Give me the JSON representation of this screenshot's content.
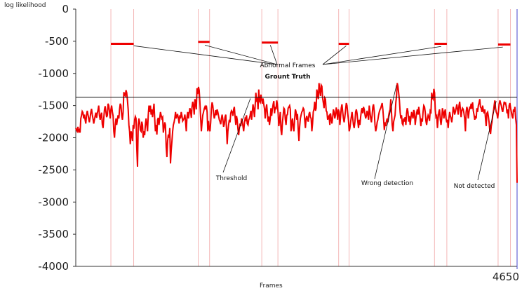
{
  "chart_data": {
    "type": "line",
    "ylabel": "log likelihood",
    "xlabel": "Frames",
    "ylim": [
      -4000,
      0
    ],
    "xlim": [
      0,
      4650
    ],
    "y_ticks": [
      "0",
      "-500",
      "-1000",
      "-1500",
      "-2000",
      "-2500",
      "-3000",
      "-3500",
      "-4000"
    ],
    "x_end_label": "4650",
    "threshold": -1370,
    "grid": false,
    "series_color": "#ee0000",
    "series": [
      {
        "values": [
          -1850,
          -1880,
          -1900,
          -1830,
          -1900,
          -1880,
          -1920,
          -1700,
          -1650,
          -1590,
          -1610,
          -1700,
          -1640,
          -1720,
          -1780,
          -1650,
          -1580,
          -1640,
          -1700,
          -1760,
          -1680,
          -1600,
          -1550,
          -1640,
          -1700,
          -1780,
          -1720,
          -1660,
          -1610,
          -1690,
          -1620,
          -1570,
          -1500,
          -1660,
          -1720,
          -1650,
          -1610,
          -1790,
          -1850,
          -1700,
          -1560,
          -1510,
          -1600,
          -1680,
          -1650,
          -1470,
          -1500,
          -1600,
          -1700,
          -1560,
          -1500,
          -1600,
          -1660,
          -1900,
          -2000,
          -1800,
          -1700,
          -1800,
          -1720,
          -1650,
          -1700,
          -1560,
          -1470,
          -1500,
          -1650,
          -1720,
          -1600,
          -1290,
          -1330,
          -1350,
          -1260,
          -1300,
          -1410,
          -1560,
          -1800,
          -1900,
          -2100,
          -1900,
          -1950,
          -2050,
          -1800,
          -1860,
          -1720,
          -1670,
          -1700,
          -2150,
          -2450,
          -1800,
          -1700,
          -1760,
          -1880,
          -1900,
          -1750,
          -1800,
          -2000,
          -1900,
          -1960,
          -1800,
          -1700,
          -1800,
          -1900,
          -1650,
          -1500,
          -1600,
          -1500,
          -1640,
          -1560,
          -1680,
          -1570,
          -1470,
          -1700,
          -1900,
          -1800,
          -1950,
          -1720,
          -1690,
          -1800,
          -1700,
          -1600,
          -1650,
          -1700,
          -1680,
          -1920,
          -1850,
          -1760,
          -1800,
          -2150,
          -2300,
          -2050,
          -1950,
          -2000,
          -1850,
          -2400,
          -2200,
          -2050,
          -1900,
          -1800,
          -1760,
          -1700,
          -1600,
          -1700,
          -1650,
          -1640,
          -1700,
          -1780,
          -1650,
          -1700,
          -1600,
          -1660,
          -1740,
          -1720,
          -1700,
          -1640,
          -1750,
          -1900,
          -1680,
          -1600,
          -1700,
          -1620,
          -1540,
          -1580,
          -1690,
          -1520,
          -1440,
          -1500,
          -1640,
          -1400,
          -1450,
          -1560,
          -1230,
          -1320,
          -1210,
          -1260,
          -1440,
          -1700,
          -1900,
          -1760,
          -1650,
          -1600,
          -1550,
          -1520,
          -1560,
          -1500,
          -1600,
          -1900,
          -1740,
          -1860,
          -1900,
          -1760,
          -1550,
          -1450,
          -1500,
          -1620,
          -1700,
          -1650,
          -1570,
          -1650,
          -1560,
          -1600,
          -1660,
          -1720,
          -1750,
          -1790,
          -1700,
          -1640,
          -1720,
          -1830,
          -1790,
          -1680,
          -1640,
          -1850,
          -2100,
          -1900,
          -1800,
          -1720,
          -1760,
          -1620,
          -1580,
          -1600,
          -1660,
          -1560,
          -1520,
          -1680,
          -1800,
          -1660,
          -1720,
          -1860,
          -1960,
          -1850,
          -1780,
          -1820,
          -1700,
          -1740,
          -1820,
          -1900,
          -1780,
          -1700,
          -1720,
          -1650,
          -1780,
          -1800,
          -1720,
          -1700,
          -1650,
          -1580,
          -1720,
          -1600,
          -1480,
          -1550,
          -1680,
          -1500,
          -1300,
          -1420,
          -1400,
          -1560,
          -1250,
          -1430,
          -1450,
          -1330,
          -1400,
          -1470,
          -1390,
          -1480,
          -1550,
          -1700,
          -1560,
          -1480,
          -1620,
          -1750,
          -1670,
          -1800,
          -1700,
          -1540,
          -1660,
          -1560,
          -1480,
          -1430,
          -1620,
          -1520,
          -1560,
          -1420,
          -1480,
          -1620,
          -1820,
          -1720,
          -1600,
          -1880,
          -1960,
          -1760,
          -1650,
          -1540,
          -1560,
          -1710,
          -1800,
          -1650,
          -1640,
          -1540,
          -1520,
          -1500,
          -1560,
          -1900,
          -1760,
          -1700,
          -1850,
          -1900,
          -1720,
          -1560,
          -1600,
          -1720,
          -1630,
          -1880,
          -2050,
          -1830,
          -1700,
          -1650,
          -1600,
          -1580,
          -1540,
          -1560,
          -1720,
          -1850,
          -1700,
          -1660,
          -1720,
          -1750,
          -1630,
          -1600,
          -1680,
          -1700,
          -1900,
          -1780,
          -1600,
          -1550,
          -1440,
          -1580,
          -1540,
          -1250,
          -1330,
          -1400,
          -1150,
          -1260,
          -1350,
          -1180,
          -1200,
          -1380,
          -1460,
          -1540,
          -1380,
          -1400,
          -1580,
          -1600,
          -1720,
          -1680,
          -1660,
          -1800,
          -1620,
          -1700,
          -1780,
          -1690,
          -1560,
          -1600,
          -1700,
          -1650,
          -1530,
          -1600,
          -1720,
          -1560,
          -1600,
          -1800,
          -1680,
          -1540,
          -1480,
          -1600,
          -1700,
          -1760,
          -1680,
          -1560,
          -1460,
          -1500,
          -1620,
          -1730,
          -1900,
          -1850,
          -1760,
          -1680,
          -1600,
          -1700,
          -1800,
          -1850,
          -1750,
          -1600,
          -1560,
          -1620,
          -1740,
          -1850,
          -1720,
          -1800,
          -1680,
          -1580,
          -1540,
          -1620,
          -1520,
          -1560,
          -1640,
          -1700,
          -1660,
          -1580,
          -1640,
          -1720,
          -1500,
          -1600,
          -1700,
          -1760,
          -1650,
          -1520,
          -1480,
          -1600,
          -1800,
          -1900,
          -1850,
          -1760,
          -1720,
          -1650,
          -1600,
          -1560,
          -1540,
          -1500,
          -1460,
          -1560,
          -1720,
          -1880,
          -1760,
          -1820,
          -1740,
          -1700,
          -1760,
          -1660,
          -1600,
          -1560,
          -1400,
          -1600,
          -1800,
          -1900,
          -1750,
          -1700,
          -1650,
          -1450,
          -1350,
          -1150,
          -1200,
          -1300,
          -1420,
          -1600,
          -1700,
          -1650,
          -1780,
          -1800,
          -1700,
          -1750,
          -1680,
          -1800,
          -1620,
          -1540,
          -1600,
          -1750,
          -1660,
          -1800,
          -1700,
          -1600,
          -1650,
          -1700,
          -1570,
          -1600,
          -1800,
          -1700,
          -1620,
          -1560,
          -1640,
          -1520,
          -1600,
          -1700,
          -1820,
          -1700,
          -1750,
          -1600,
          -1500,
          -1520,
          -1600,
          -1740,
          -1800,
          -1700,
          -1650,
          -1680,
          -1740,
          -1580,
          -1600,
          -1300,
          -1380,
          -1400,
          -1240,
          -1300,
          -1560,
          -1680,
          -1660,
          -1850,
          -1700,
          -1600,
          -1560,
          -1720,
          -1800,
          -1700,
          -1540,
          -1600,
          -1700,
          -1600,
          -1560,
          -1700,
          -1760,
          -1720,
          -1850,
          -1700,
          -1600,
          -1660,
          -1700,
          -1760,
          -1660,
          -1520,
          -1560,
          -1640,
          -1600,
          -1540,
          -1480,
          -1560,
          -1640,
          -1500,
          -1440,
          -1560,
          -1680,
          -1580,
          -1540,
          -1560,
          -1620,
          -1700,
          -1900,
          -1600,
          -1520,
          -1560,
          -1700,
          -1600,
          -1530,
          -1540,
          -1470,
          -1550,
          -1450,
          -1580,
          -1640,
          -1720,
          -1660,
          -1700,
          -1540,
          -1600,
          -1500,
          -1460,
          -1400,
          -1520,
          -1540,
          -1600,
          -1500,
          -1570,
          -1620,
          -1560,
          -1700,
          -1820,
          -1620,
          -1600,
          -1670,
          -1760,
          -1880,
          -1940,
          -1820,
          -1760,
          -1660,
          -1600,
          -1500,
          -1420,
          -1540,
          -1600,
          -1630,
          -1700,
          -1600,
          -1480,
          -1420,
          -1460,
          -1500,
          -1560,
          -1600,
          -1520,
          -1440,
          -1470,
          -1460,
          -1520,
          -1620,
          -1560,
          -1700,
          -1500,
          -1460,
          -1540,
          -1600,
          -1660,
          -1700,
          -1560,
          -1600,
          -1520,
          -1700,
          -1800,
          -2700
        ]
      }
    ],
    "ground_truth_label": "Grount Truth",
    "ground_truth_y": -520,
    "ground_truth_segments": [
      {
        "from": 370,
        "to": 610,
        "y": -540
      },
      {
        "from": 1290,
        "to": 1410,
        "y": -510
      },
      {
        "from": 1960,
        "to": 2130,
        "y": -520
      },
      {
        "from": 2770,
        "to": 2880,
        "y": -540
      },
      {
        "from": 3780,
        "to": 3910,
        "y": -540
      },
      {
        "from": 4450,
        "to": 4580,
        "y": -550
      }
    ],
    "annotations": [
      {
        "name": "abnormal-frames-label",
        "text": "Abnormal Frames"
      },
      {
        "name": "ground-truth-label",
        "text": "Grount Truth"
      },
      {
        "name": "threshold-label",
        "text": "Threshold"
      },
      {
        "name": "wrong-detection-label",
        "text": "Wrong detection"
      },
      {
        "name": "not-detected-label",
        "text": "Not detected"
      }
    ],
    "annotation_targets": {
      "abnormal_frames": [
        {
          "x": 610,
          "y": -570
        },
        {
          "x": 1360,
          "y": -560
        },
        {
          "x": 2050,
          "y": -560
        },
        {
          "x": 2850,
          "y": -570
        },
        {
          "x": 3850,
          "y": -580
        },
        {
          "x": 4500,
          "y": -590
        }
      ],
      "threshold": {
        "x": 1840,
        "y": -1390
      },
      "wrong_detection": {
        "x": 3380,
        "y": -1180
      },
      "not_detected": {
        "x": 4430,
        "y": -1430
      }
    },
    "accent_colors": {
      "axis": "#333333",
      "threshold_line": "#111111",
      "guide_lines": "#f4b6b6",
      "right_marker": "#4444cc"
    }
  },
  "labels": {
    "ylabel": "log likelihood",
    "xlabel": "Frames",
    "x_end": "4650"
  }
}
